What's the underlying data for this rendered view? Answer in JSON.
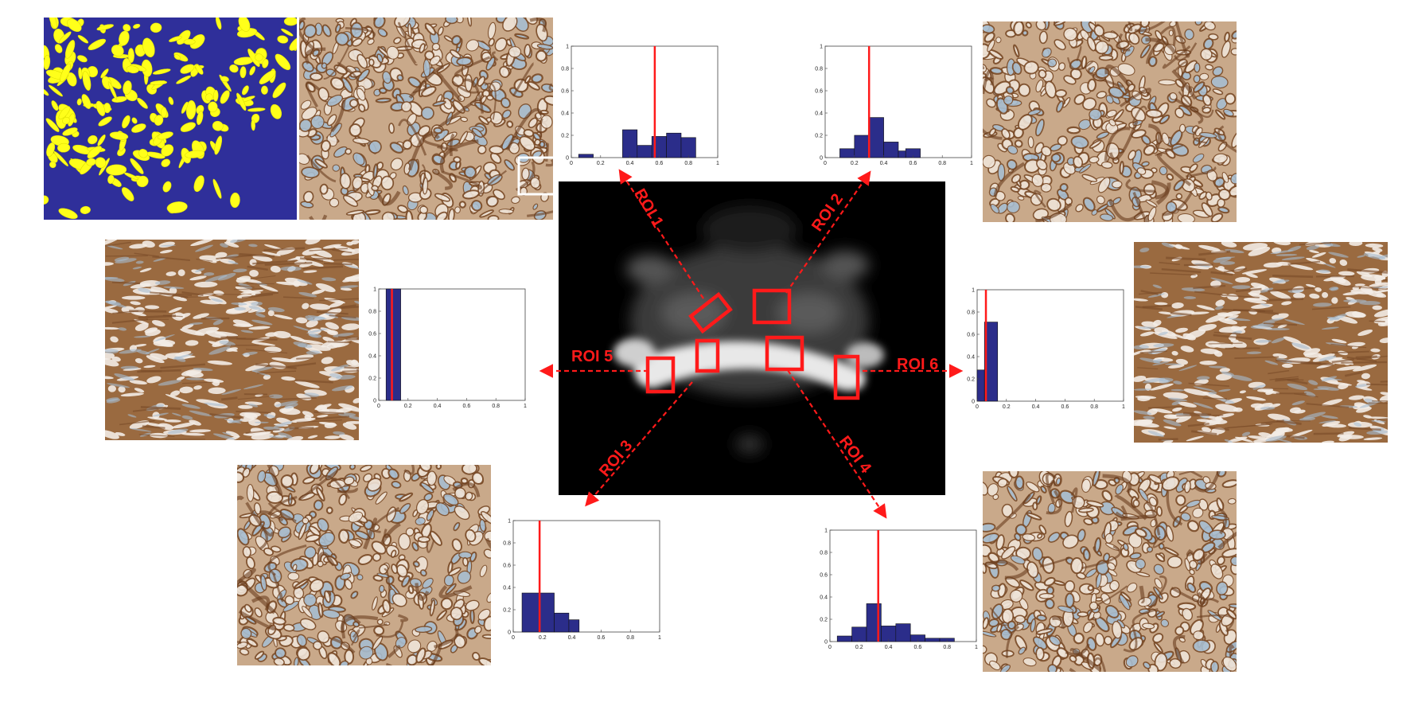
{
  "colors": {
    "annotation": "#ff1a1a",
    "hist_bar": "#2b2d8a",
    "mask_background": "#2f2f9a",
    "mask_foreground": "#ffff1a",
    "tissue_light": "#c9a98a",
    "tissue_dark": "#7a4b28",
    "tissue_blue": "#a7bdd0",
    "mri_background": "#000000"
  },
  "roi_labels": [
    "ROI 1",
    "ROI 2",
    "ROI 3",
    "ROI 4",
    "ROI 5",
    "ROI 6"
  ],
  "tissue_panels": [
    {
      "name": "segmentation-mask",
      "style": "mask"
    },
    {
      "name": "histology-roi1",
      "style": "glandular",
      "has_inset_box": true
    },
    {
      "name": "histology-roi2",
      "style": "glandular"
    },
    {
      "name": "histology-roi5",
      "style": "stromal"
    },
    {
      "name": "histology-roi6",
      "style": "stromal"
    },
    {
      "name": "histology-roi3",
      "style": "glandular"
    },
    {
      "name": "histology-roi4",
      "style": "glandular"
    }
  ],
  "chart_data": [
    {
      "name": "histogram-roi1",
      "type": "bar",
      "bin_edges": [
        0.05,
        0.15,
        0.25,
        0.35,
        0.45,
        0.55,
        0.65,
        0.75,
        0.85
      ],
      "values": [
        0.03,
        0,
        0,
        0.25,
        0.11,
        0.19,
        0.22,
        0.18
      ],
      "marker_x": 0.57,
      "xlim": [
        0,
        1
      ],
      "ylim": [
        0,
        1
      ],
      "xticks": [
        "0",
        "0.2",
        "0.4",
        "0.6",
        "0.8",
        "1"
      ],
      "yticks": [
        "0",
        "0.2",
        "0.4",
        "0.6",
        "0.8",
        "1"
      ]
    },
    {
      "name": "histogram-roi2",
      "type": "bar",
      "bin_edges": [
        0.1,
        0.2,
        0.3,
        0.4,
        0.5,
        0.55,
        0.65
      ],
      "values": [
        0.08,
        0.2,
        0.36,
        0.14,
        0.06,
        0.08
      ],
      "marker_x": 0.3,
      "xlim": [
        0,
        1
      ],
      "ylim": [
        0,
        1
      ],
      "xticks": [
        "0",
        "0.2",
        "0.4",
        "0.6",
        "0.8",
        "1"
      ],
      "yticks": [
        "0",
        "0.2",
        "0.4",
        "0.6",
        "0.8",
        "1"
      ]
    },
    {
      "name": "histogram-roi5",
      "type": "bar",
      "bin_edges": [
        0.05,
        0.15
      ],
      "values": [
        1.0
      ],
      "marker_x": 0.09,
      "xlim": [
        0,
        1
      ],
      "ylim": [
        0,
        1
      ],
      "xticks": [
        "0",
        "0.2",
        "0.4",
        "0.6",
        "0.8",
        "1"
      ],
      "yticks": [
        "0",
        "0.2",
        "0.4",
        "0.6",
        "0.8",
        "1"
      ]
    },
    {
      "name": "histogram-roi6",
      "type": "bar",
      "bin_edges": [
        0,
        0.05,
        0.14
      ],
      "values": [
        0.28,
        0.71
      ],
      "marker_x": 0.06,
      "xlim": [
        0,
        1
      ],
      "ylim": [
        0,
        1
      ],
      "xticks": [
        "0",
        "0.2",
        "0.4",
        "0.6",
        "0.8",
        "1"
      ],
      "yticks": [
        "0",
        "0.2",
        "0.4",
        "0.6",
        "0.8",
        "1"
      ]
    },
    {
      "name": "histogram-roi3",
      "type": "bar",
      "bin_edges": [
        0.06,
        0.18,
        0.28,
        0.38,
        0.45
      ],
      "values": [
        0.35,
        0.35,
        0.17,
        0.11
      ],
      "marker_x": 0.18,
      "xlim": [
        0,
        1
      ],
      "ylim": [
        0,
        1
      ],
      "xticks": [
        "0",
        "0.2",
        "0.4",
        "0.6",
        "0.8",
        "1"
      ],
      "yticks": [
        "0",
        "0.2",
        "0.4",
        "0.6",
        "0.8",
        "1"
      ]
    },
    {
      "name": "histogram-roi4",
      "type": "bar",
      "bin_edges": [
        0.05,
        0.15,
        0.25,
        0.35,
        0.45,
        0.55,
        0.65,
        0.75,
        0.85
      ],
      "values": [
        0.05,
        0.13,
        0.34,
        0.14,
        0.16,
        0.06,
        0.03,
        0.03
      ],
      "marker_x": 0.33,
      "xlim": [
        0,
        1
      ],
      "ylim": [
        0,
        1
      ],
      "xticks": [
        "0",
        "0.2",
        "0.4",
        "0.6",
        "0.8",
        "1"
      ],
      "yticks": [
        "0",
        "0.2",
        "0.4",
        "0.6",
        "0.8",
        "1"
      ]
    }
  ]
}
